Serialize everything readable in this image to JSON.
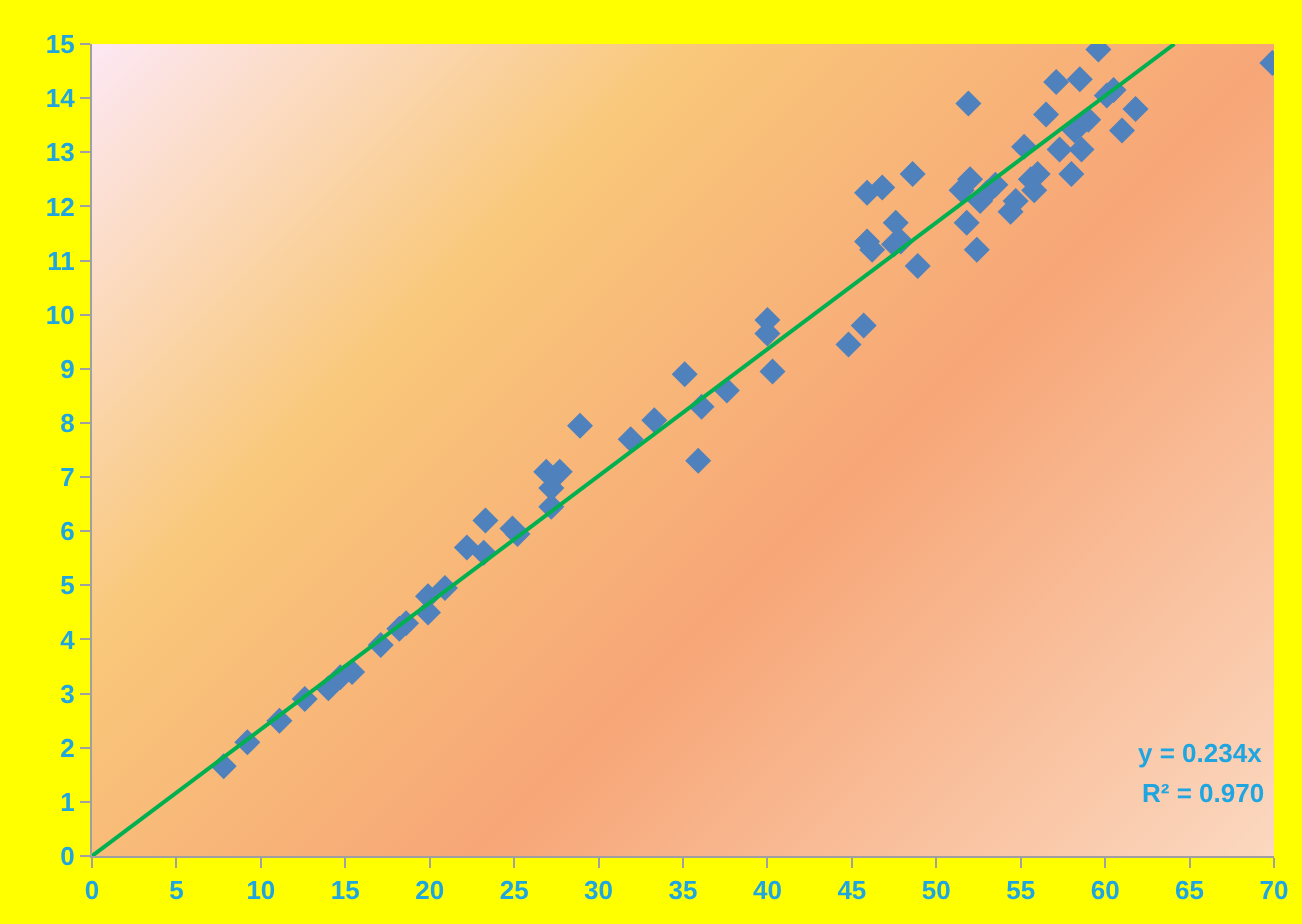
{
  "chart_data": {
    "type": "scatter",
    "marker": "diamond",
    "grid": false,
    "xlim": [
      0,
      70
    ],
    "xticks": [
      0,
      5,
      10,
      15,
      20,
      25,
      30,
      35,
      40,
      45,
      50,
      55,
      60,
      65,
      70
    ],
    "ylim": [
      0,
      15
    ],
    "yticks": [
      0,
      1,
      2,
      3,
      4,
      5,
      6,
      7,
      8,
      9,
      10,
      11,
      12,
      13,
      14,
      15
    ],
    "annotations": [
      "y = 0.234x",
      "R² = 0.970"
    ],
    "series": [
      {
        "color": "#4f81bd",
        "x": [
          7.8,
          9.2,
          11.1,
          12.6,
          14.0,
          14.7,
          15.4,
          17.1,
          18.2,
          18.6,
          19.9,
          19.9,
          20.9,
          22.2,
          23.2,
          23.3,
          24.9,
          25.2,
          27.2,
          27.2,
          26.9,
          27.7,
          28.9,
          31.9,
          33.3,
          35.1,
          35.9,
          36.1,
          37.6,
          40.0,
          40.0,
          40.3,
          44.8,
          45.7,
          45.9,
          45.9,
          46.2,
          46.8,
          47.5,
          47.6,
          47.9,
          48.6,
          48.9,
          51.9,
          51.5,
          52.0,
          52.4,
          51.8,
          52.6,
          53.0,
          53.5,
          54.4,
          54.7,
          55.2,
          55.6,
          55.8,
          56.0,
          56.5,
          57.1,
          57.3,
          58.0,
          58.2,
          58.5,
          58.6,
          59.0,
          59.6,
          60.1,
          60.5,
          61.0,
          61.8,
          69.9
        ],
        "values": [
          1.66,
          2.1,
          2.5,
          2.9,
          3.1,
          3.3,
          3.4,
          3.9,
          4.2,
          4.3,
          4.5,
          4.8,
          4.95,
          5.7,
          5.6,
          6.2,
          6.05,
          5.95,
          6.45,
          6.8,
          7.1,
          7.1,
          7.95,
          7.7,
          8.05,
          8.9,
          7.3,
          8.3,
          8.6,
          9.9,
          9.65,
          8.95,
          9.45,
          9.8,
          12.25,
          11.35,
          11.2,
          12.35,
          11.3,
          11.7,
          11.35,
          12.6,
          10.9,
          13.9,
          12.3,
          12.5,
          11.2,
          11.7,
          12.1,
          12.25,
          12.4,
          11.9,
          12.1,
          13.1,
          12.5,
          12.3,
          12.6,
          13.7,
          14.3,
          13.05,
          12.6,
          13.4,
          14.35,
          13.05,
          13.6,
          14.9,
          14.05,
          14.15,
          13.4,
          13.8,
          14.65
        ]
      },
      {
        "type": "line",
        "color": "#00b050",
        "marker": "none",
        "line_style": "solid",
        "x": [
          0,
          64.1
        ],
        "values": [
          0,
          15
        ]
      }
    ]
  }
}
